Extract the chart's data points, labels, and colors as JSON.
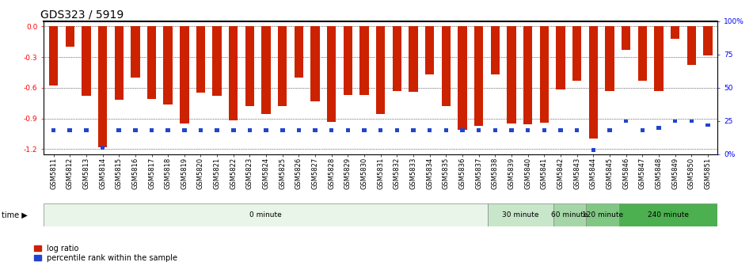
{
  "title": "GDS323 / 5919",
  "samples": [
    "GSM5811",
    "GSM5812",
    "GSM5813",
    "GSM5814",
    "GSM5815",
    "GSM5816",
    "GSM5817",
    "GSM5818",
    "GSM5819",
    "GSM5820",
    "GSM5821",
    "GSM5822",
    "GSM5823",
    "GSM5824",
    "GSM5825",
    "GSM5826",
    "GSM5827",
    "GSM5828",
    "GSM5829",
    "GSM5830",
    "GSM5831",
    "GSM5832",
    "GSM5833",
    "GSM5834",
    "GSM5835",
    "GSM5836",
    "GSM5837",
    "GSM5838",
    "GSM5839",
    "GSM5840",
    "GSM5841",
    "GSM5842",
    "GSM5843",
    "GSM5844",
    "GSM5845",
    "GSM5846",
    "GSM5847",
    "GSM5848",
    "GSM5849",
    "GSM5850",
    "GSM5851"
  ],
  "log_ratio": [
    -0.58,
    -0.2,
    -0.68,
    -1.18,
    -0.72,
    -0.5,
    -0.71,
    -0.76,
    -0.95,
    -0.65,
    -0.68,
    -0.92,
    -0.78,
    -0.86,
    -0.78,
    -0.5,
    -0.73,
    -0.93,
    -0.67,
    -0.67,
    -0.86,
    -0.63,
    -0.64,
    -0.47,
    -0.78,
    -1.01,
    -0.97,
    -0.47,
    -0.95,
    -0.96,
    -0.94,
    -0.62,
    -0.53,
    -1.1,
    -0.63,
    -0.23,
    -0.53,
    -0.63,
    -0.12,
    -0.38,
    -0.28
  ],
  "percentile": [
    18,
    18,
    18,
    5,
    18,
    18,
    18,
    18,
    18,
    18,
    18,
    18,
    18,
    18,
    18,
    18,
    18,
    18,
    18,
    18,
    18,
    18,
    18,
    18,
    18,
    18,
    18,
    18,
    18,
    18,
    18,
    18,
    18,
    3,
    18,
    25,
    18,
    20,
    25,
    25,
    22
  ],
  "time_groups": [
    {
      "label": "0 minute",
      "start": 0,
      "end": 27,
      "color": "#e8f5e8"
    },
    {
      "label": "30 minute",
      "start": 27,
      "end": 31,
      "color": "#c8e6c9"
    },
    {
      "label": "60 minute",
      "start": 31,
      "end": 33,
      "color": "#a5d6a7"
    },
    {
      "label": "120 minute",
      "start": 33,
      "end": 35,
      "color": "#81c784"
    },
    {
      "label": "240 minute",
      "start": 35,
      "end": 41,
      "color": "#4caf50"
    }
  ],
  "bar_color": "#cc2200",
  "pct_color": "#2244cc",
  "ylim_left": [
    -1.25,
    0.05
  ],
  "ylim_right": [
    0,
    100
  ],
  "yticks_left": [
    0.0,
    -0.3,
    -0.6,
    -0.9,
    -1.2
  ],
  "yticks_right": [
    0,
    25,
    50,
    75,
    100
  ],
  "background_color": "#ffffff",
  "title_fontsize": 10,
  "tick_fontsize": 6.5,
  "bar_width": 0.55
}
